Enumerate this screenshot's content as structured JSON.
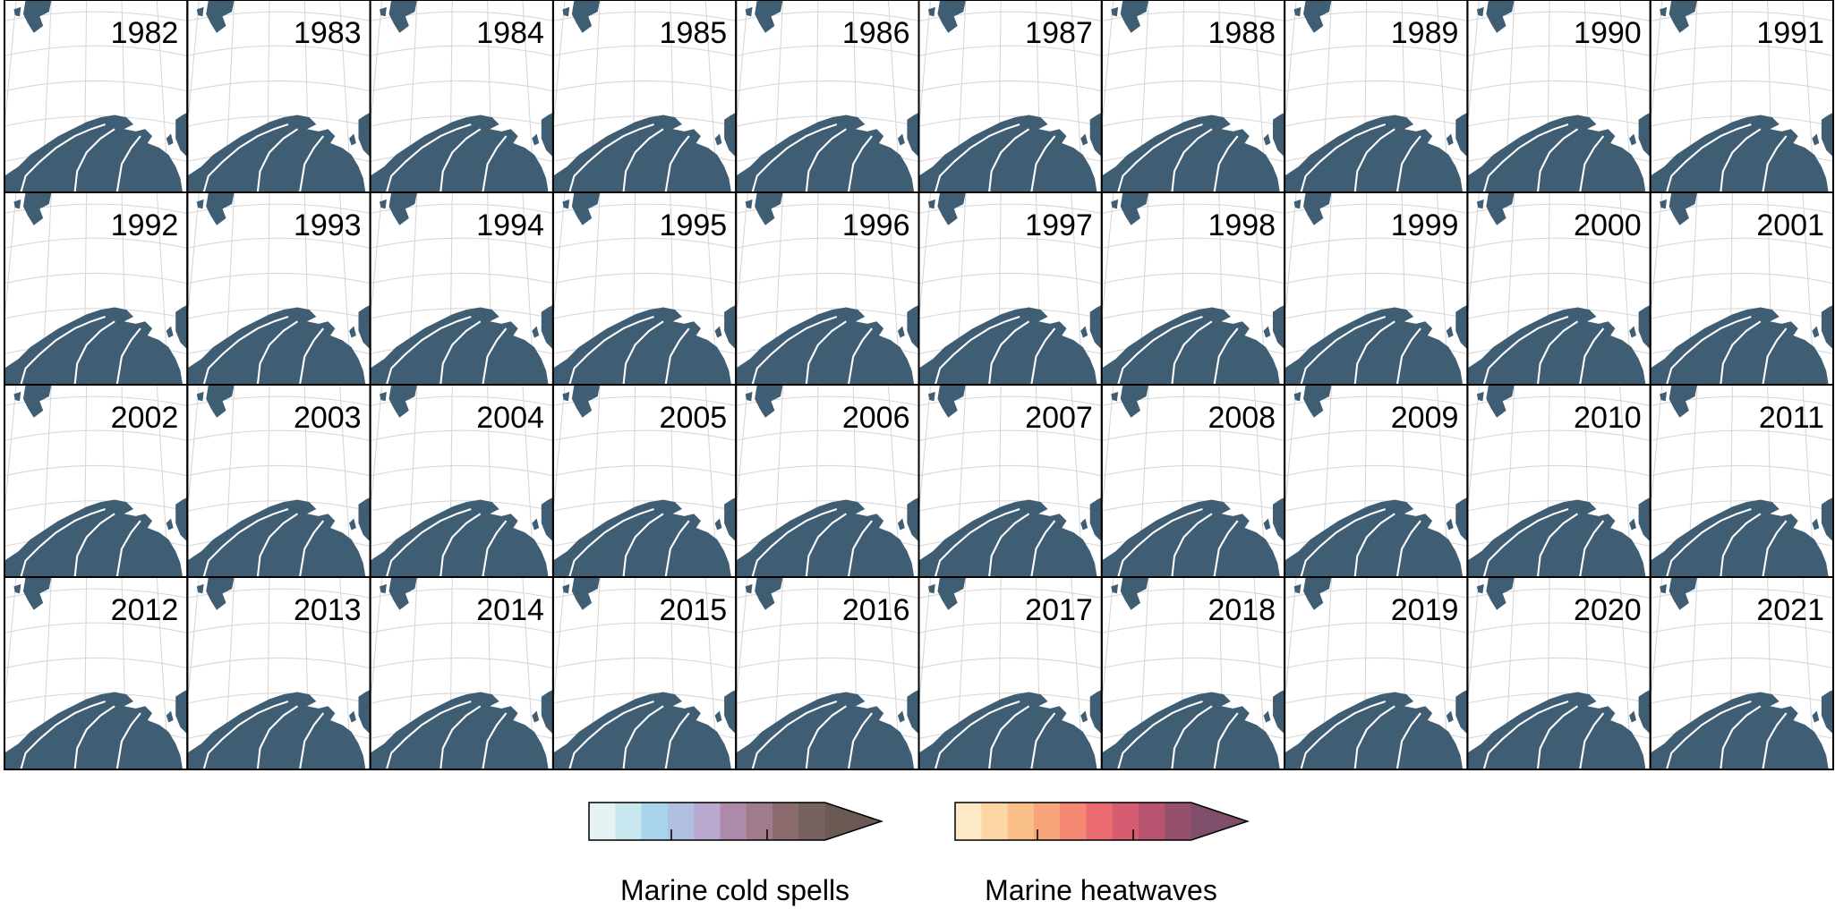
{
  "panels": {
    "years": [
      "1982",
      "1983",
      "1984",
      "1985",
      "1986",
      "1987",
      "1988",
      "1989",
      "1990",
      "1991",
      "1992",
      "1993",
      "1994",
      "1995",
      "1996",
      "1997",
      "1998",
      "1999",
      "2000",
      "2001",
      "2002",
      "2003",
      "2004",
      "2005",
      "2006",
      "2007",
      "2008",
      "2009",
      "2010",
      "2011",
      "2012",
      "2013",
      "2014",
      "2015",
      "2016",
      "2017",
      "2018",
      "2019",
      "2020",
      "2021"
    ]
  },
  "legend": [
    {
      "label": "Marine cold spells",
      "colors": [
        "#e5f3f4",
        "#c7e6ee",
        "#a8d5ec",
        "#b1bfe0",
        "#b9a9cf",
        "#ad8aa9",
        "#9f7b8b",
        "#8b6a6e",
        "#76625e",
        "#6b5954"
      ]
    },
    {
      "label": "Marine heatwaves",
      "colors": [
        "#fde9c6",
        "#fdd6a6",
        "#fbbf8a",
        "#f9a57c",
        "#f58872",
        "#eb6b71",
        "#d65c72",
        "#b8546f",
        "#94506d",
        "#7f4e6b"
      ]
    }
  ]
}
